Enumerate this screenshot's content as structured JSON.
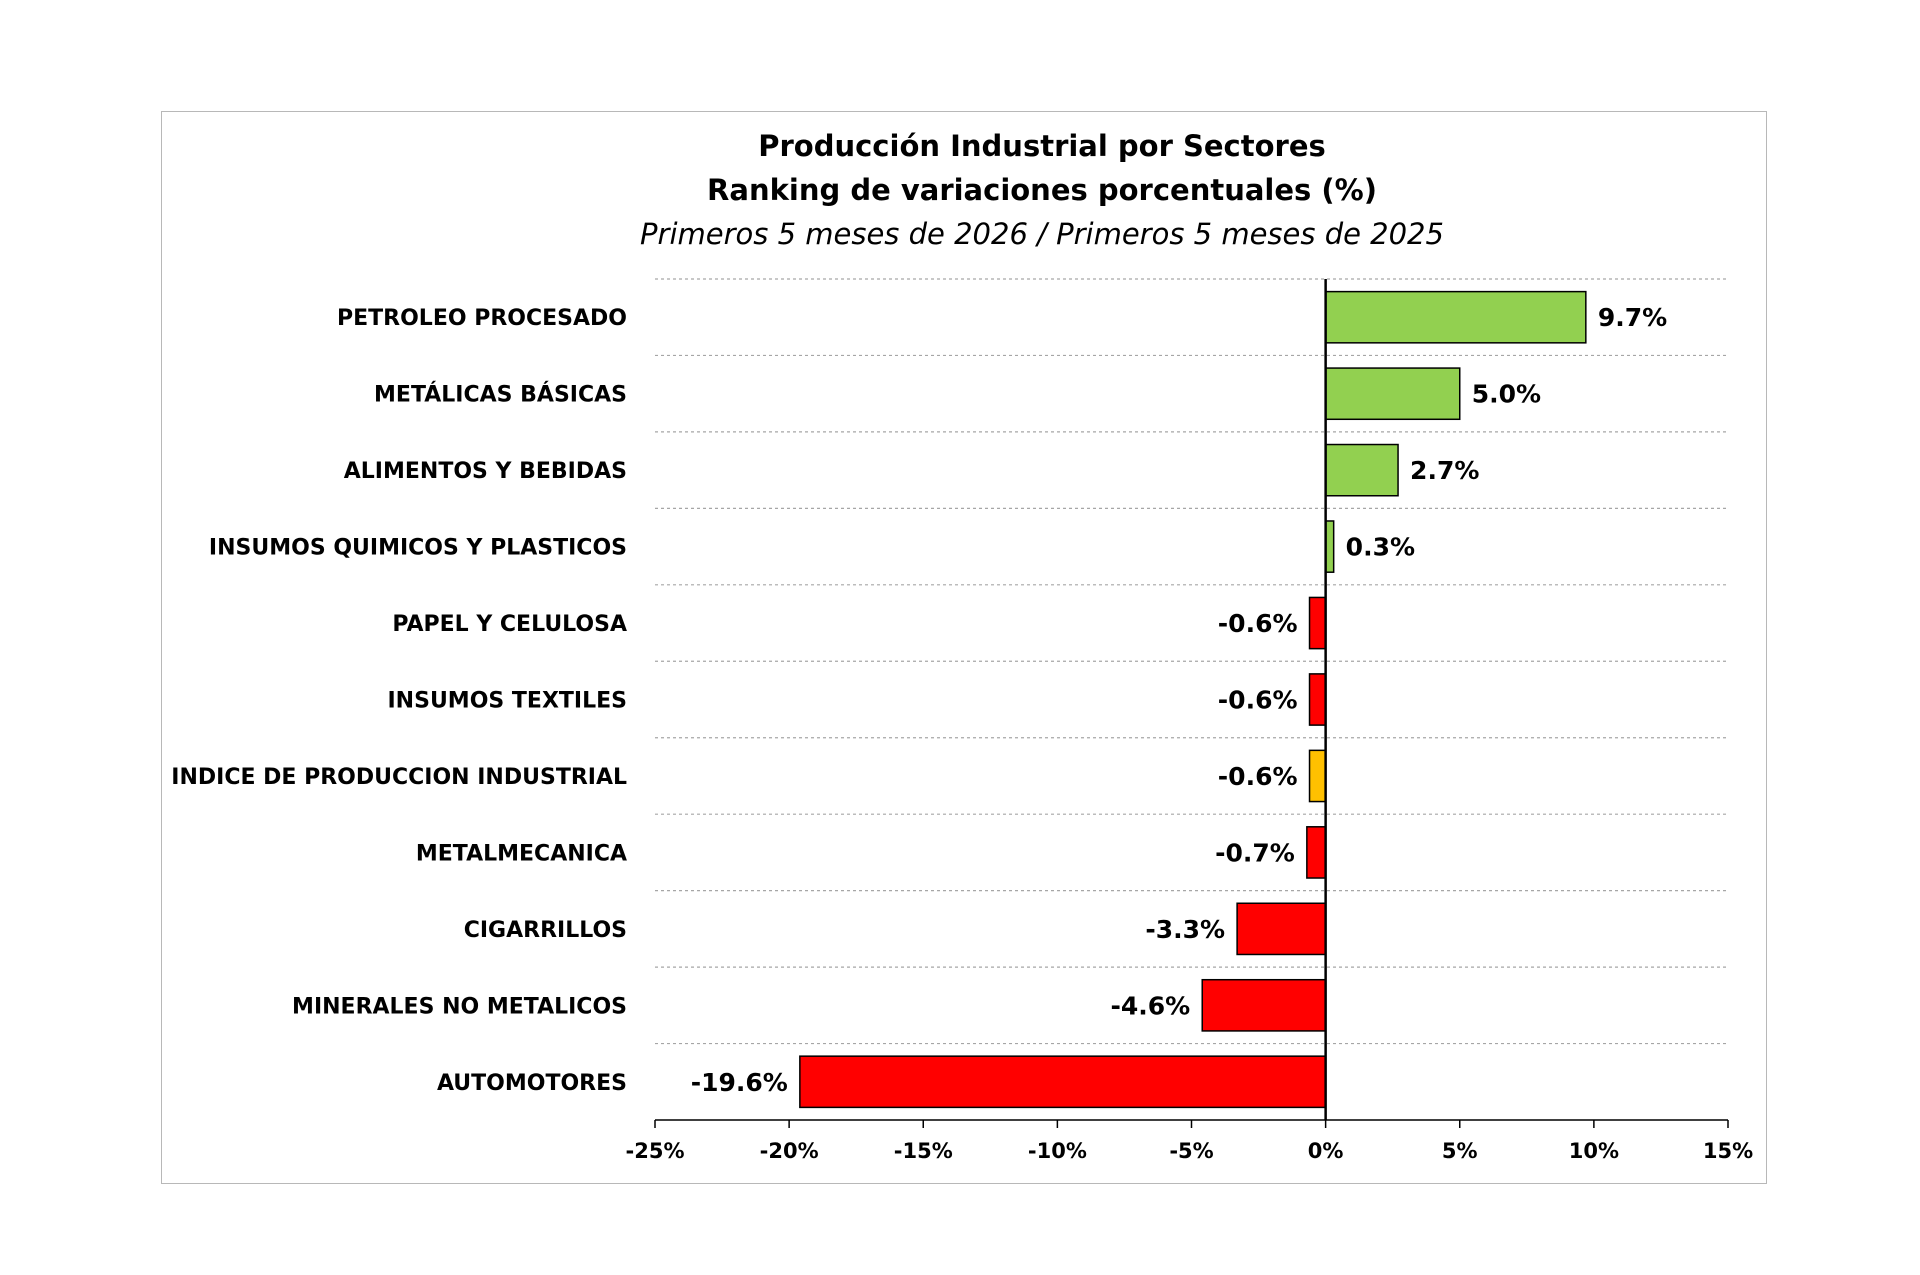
{
  "chart_data": {
    "type": "bar",
    "orientation": "horizontal",
    "title": "Producción Industrial por Sectores",
    "subtitle_line1": "Ranking de variaciones porcentuales (%)",
    "subtitle_line2": "Primeros 5 meses de 2026 / Primeros 5 meses de 2025",
    "categories": [
      "PETROLEO PROCESADO",
      "METÁLICAS BÁSICAS",
      "ALIMENTOS Y BEBIDAS",
      "INSUMOS QUIMICOS Y PLASTICOS",
      "PAPEL Y CELULOSA",
      "INSUMOS TEXTILES",
      "INDICE DE PRODUCCION INDUSTRIAL",
      "METALMECANICA",
      "CIGARRILLOS",
      "MINERALES NO METALICOS",
      "AUTOMOTORES"
    ],
    "values": [
      9.7,
      5.0,
      2.7,
      0.3,
      -0.6,
      -0.6,
      -0.6,
      -0.7,
      -3.3,
      -4.6,
      -19.6
    ],
    "value_labels": [
      "9.7%",
      "5.0%",
      "2.7%",
      "0.3%",
      "-0.6%",
      "-0.6%",
      "-0.6%",
      "-0.7%",
      "-3.3%",
      "-4.6%",
      "-19.6%"
    ],
    "xlim": [
      -25,
      15
    ],
    "x_ticks": [
      -25,
      -20,
      -15,
      -10,
      -5,
      0,
      5,
      10,
      15
    ],
    "x_tick_labels": [
      "-25%",
      "-20%",
      "-15%",
      "-10%",
      "-5%",
      "0%",
      "5%",
      "10%",
      "15%"
    ],
    "grid": "horizontal dashed",
    "colors": {
      "positive": "#92d050",
      "negative": "#ff0000",
      "index": "#ffc000",
      "axis": "#000000",
      "grid": "#a6a6a6"
    },
    "highlight_category": "INDICE DE PRODUCCION INDUSTRIAL"
  }
}
